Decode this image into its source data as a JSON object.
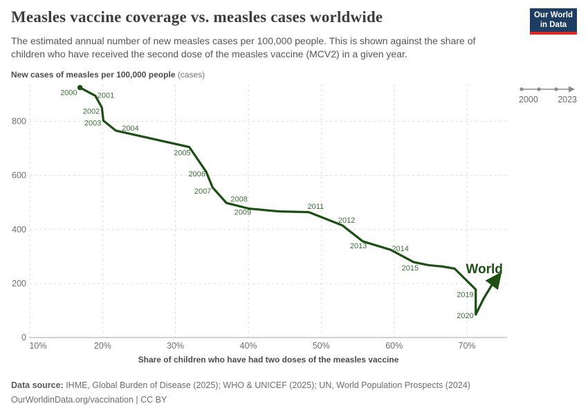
{
  "header": {
    "title": "Measles vaccine coverage vs. measles cases worldwide",
    "subtitle": "The estimated annual number of new measles cases per 100,000 people. This is shown against the share of children who have received the second dose of the measles vaccine (MCV2) in a given year.",
    "logo_line1": "Our World",
    "logo_line2": "in Data"
  },
  "timeline": {
    "start": "2000",
    "end": "2023"
  },
  "colors": {
    "line": "#1d4f15",
    "year_label": "#3c6e38",
    "grid": "#dcdcdc",
    "axis": "#a6a6a6",
    "tick_text": "#6e6e6e",
    "logo_navy": "#1d3d63",
    "logo_red": "#dc2a25",
    "timeline_gray": "#8a8a8a"
  },
  "chart_data": {
    "type": "line",
    "variant": "connected-scatterplot",
    "title": "Measles vaccine coverage vs. measles cases worldwide",
    "ylabel_bold": "New cases of measles per 100,000 people",
    "ylabel_note": "(cases)",
    "xlabel": "Share of children who have had two doses of the measles vaccine",
    "xlim": [
      10,
      75.5
    ],
    "ylim": [
      0,
      937
    ],
    "grid": "dashed",
    "legend": "inline-series-label",
    "x_ticks": [
      {
        "value": 10,
        "label": "10%"
      },
      {
        "value": 20,
        "label": "20%"
      },
      {
        "value": 30,
        "label": "30%"
      },
      {
        "value": 40,
        "label": "40%"
      },
      {
        "value": 50,
        "label": "50%"
      },
      {
        "value": 60,
        "label": "60%"
      },
      {
        "value": 70,
        "label": "70%"
      }
    ],
    "y_ticks": [
      {
        "value": 0,
        "label": "0"
      },
      {
        "value": 200,
        "label": "200"
      },
      {
        "value": 400,
        "label": "400"
      },
      {
        "value": 600,
        "label": "600"
      },
      {
        "value": 800,
        "label": "800"
      }
    ],
    "series": [
      {
        "name": "World",
        "color": "#1d4f15",
        "points": [
          {
            "year": 2000,
            "coverage_pct": 16.9,
            "cases": 925,
            "label": {
              "anchor": "end",
              "dx": -4,
              "dy": 11
            }
          },
          {
            "year": 2001,
            "coverage_pct": 19.0,
            "cases": 895,
            "label": {
              "anchor": "start",
              "dx": 3,
              "dy": 3
            }
          },
          {
            "year": 2002,
            "coverage_pct": 19.9,
            "cases": 851,
            "label": {
              "anchor": "end",
              "dx": -3,
              "dy": 9
            }
          },
          {
            "year": 2003,
            "coverage_pct": 20.1,
            "cases": 803,
            "label": {
              "anchor": "end",
              "dx": -3,
              "dy": 7
            }
          },
          {
            "year": 2004,
            "coverage_pct": 21.8,
            "cases": 766,
            "label": {
              "anchor": "start",
              "dx": 9,
              "dy": 0
            }
          },
          {
            "year": 2005,
            "coverage_pct": 31.9,
            "cases": 705,
            "label": {
              "anchor": "end",
              "dx": 2,
              "dy": 12
            }
          },
          {
            "year": 2006,
            "coverage_pct": 34.2,
            "cases": 614,
            "label": {
              "anchor": "end",
              "dx": -1,
              "dy": 7
            }
          },
          {
            "year": 2007,
            "coverage_pct": 35.1,
            "cases": 555,
            "label": {
              "anchor": "end",
              "dx": -2,
              "dy": 9
            }
          },
          {
            "year": 2008,
            "coverage_pct": 37.0,
            "cases": 498,
            "label": {
              "anchor": "start",
              "dx": 6,
              "dy": -2
            }
          },
          {
            "year": 2009,
            "coverage_pct": 40.1,
            "cases": 477,
            "label": {
              "anchor": "end",
              "dx": 3,
              "dy": 9
            }
          },
          {
            "year": 2010,
            "coverage_pct": 44.2,
            "cases": 467,
            "label": null
          },
          {
            "year": 2011,
            "coverage_pct": 48.3,
            "cases": 464,
            "label": {
              "anchor": "start",
              "dx": -2,
              "dy": -5
            }
          },
          {
            "year": 2012,
            "coverage_pct": 52.9,
            "cases": 415,
            "label": {
              "anchor": "start",
              "dx": -6,
              "dy": -4
            }
          },
          {
            "year": 2013,
            "coverage_pct": 55.7,
            "cases": 356,
            "label": {
              "anchor": "end",
              "dx": 6,
              "dy": 10
            }
          },
          {
            "year": 2014,
            "coverage_pct": 59.5,
            "cases": 325,
            "label": {
              "anchor": "start",
              "dx": 2,
              "dy": 2
            }
          },
          {
            "year": 2015,
            "coverage_pct": 62.7,
            "cases": 279,
            "label": {
              "anchor": "end",
              "dx": 7,
              "dy": 12
            }
          },
          {
            "year": 2016,
            "coverage_pct": 64.7,
            "cases": 268,
            "label": null
          },
          {
            "year": 2017,
            "coverage_pct": 66.6,
            "cases": 263,
            "label": null
          },
          {
            "year": 2018,
            "coverage_pct": 68.3,
            "cases": 255,
            "label": null
          },
          {
            "year": 2019,
            "coverage_pct": 71.2,
            "cases": 178,
            "label": {
              "anchor": "end",
              "dx": -3,
              "dy": 11
            }
          },
          {
            "year": 2020,
            "coverage_pct": 71.2,
            "cases": 85,
            "label": {
              "anchor": "end",
              "dx": -3,
              "dy": 5
            }
          },
          {
            "year": 2021,
            "coverage_pct": 72.3,
            "cases": 145,
            "label": null
          },
          {
            "year": 2022,
            "coverage_pct": 73.4,
            "cases": 194,
            "label": null
          },
          {
            "year": 2023,
            "coverage_pct": 74.4,
            "cases": 230,
            "label": null
          }
        ]
      }
    ]
  },
  "footer": {
    "source_label": "Data source:",
    "sources": " IHME, Global Burden of Disease (2025); WHO & UNICEF (2025); UN, World Population Prospects (2024)",
    "attribution": "OurWorldinData.org/vaccination | CC BY"
  }
}
